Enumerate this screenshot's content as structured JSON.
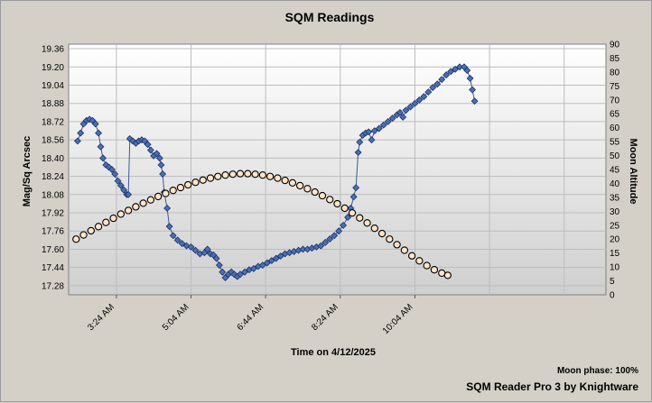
{
  "chart_data": {
    "type": "line",
    "title": "SQM Readings",
    "xlabel": "Time on 4/12/2025",
    "ylabel": "Mag/Sq Arcsec",
    "y2label": "Moon Altitude",
    "x_ticks": [
      "3:24 AM",
      "5:04 AM",
      "6:44 AM",
      "8:24 AM",
      "10:04 AM"
    ],
    "xlim_minutes": [
      140,
      860
    ],
    "ylim": [
      17.2,
      19.4
    ],
    "y_ticks": [
      17.28,
      17.44,
      17.6,
      17.76,
      17.92,
      18.08,
      18.24,
      18.4,
      18.56,
      18.72,
      18.88,
      19.04,
      19.2,
      19.36
    ],
    "y2lim": [
      0,
      90
    ],
    "y2_ticks": [
      0,
      5,
      10,
      15,
      20,
      25,
      30,
      35,
      40,
      45,
      50,
      55,
      60,
      65,
      70,
      75,
      80,
      85,
      90
    ],
    "grid": true,
    "series": [
      {
        "axis": "left",
        "color": "#4a6fb5",
        "marker": "diamond",
        "points": [
          [
            152,
            18.55
          ],
          [
            156,
            18.62
          ],
          [
            160,
            18.7
          ],
          [
            164,
            18.73
          ],
          [
            168,
            18.74
          ],
          [
            172,
            18.73
          ],
          [
            176,
            18.7
          ],
          [
            180,
            18.62
          ],
          [
            183,
            18.5
          ],
          [
            186,
            18.4
          ],
          [
            190,
            18.34
          ],
          [
            194,
            18.32
          ],
          [
            198,
            18.3
          ],
          [
            202,
            18.26
          ],
          [
            206,
            18.2
          ],
          [
            210,
            18.16
          ],
          [
            214,
            18.12
          ],
          [
            218,
            18.08
          ],
          [
            220,
            18.08
          ],
          [
            222,
            18.57
          ],
          [
            226,
            18.55
          ],
          [
            230,
            18.53
          ],
          [
            234,
            18.55
          ],
          [
            238,
            18.56
          ],
          [
            242,
            18.55
          ],
          [
            246,
            18.52
          ],
          [
            250,
            18.47
          ],
          [
            254,
            18.42
          ],
          [
            258,
            18.44
          ],
          [
            262,
            18.4
          ],
          [
            264,
            18.34
          ],
          [
            266,
            18.26
          ],
          [
            268,
            18.1
          ],
          [
            272,
            17.96
          ],
          [
            275,
            17.8
          ],
          [
            280,
            17.72
          ],
          [
            286,
            17.68
          ],
          [
            292,
            17.65
          ],
          [
            298,
            17.63
          ],
          [
            304,
            17.62
          ],
          [
            310,
            17.59
          ],
          [
            316,
            17.56
          ],
          [
            322,
            17.57
          ],
          [
            326,
            17.6
          ],
          [
            330,
            17.56
          ],
          [
            334,
            17.55
          ],
          [
            338,
            17.52
          ],
          [
            342,
            17.46
          ],
          [
            346,
            17.4
          ],
          [
            350,
            17.35
          ],
          [
            354,
            17.38
          ],
          [
            358,
            17.4
          ],
          [
            362,
            17.38
          ],
          [
            366,
            17.36
          ],
          [
            370,
            17.38
          ],
          [
            376,
            17.4
          ],
          [
            382,
            17.42
          ],
          [
            388,
            17.43
          ],
          [
            394,
            17.45
          ],
          [
            400,
            17.46
          ],
          [
            406,
            17.48
          ],
          [
            412,
            17.5
          ],
          [
            418,
            17.52
          ],
          [
            424,
            17.54
          ],
          [
            430,
            17.56
          ],
          [
            436,
            17.57
          ],
          [
            442,
            17.58
          ],
          [
            448,
            17.59
          ],
          [
            454,
            17.6
          ],
          [
            460,
            17.6
          ],
          [
            466,
            17.61
          ],
          [
            472,
            17.62
          ],
          [
            478,
            17.63
          ],
          [
            484,
            17.66
          ],
          [
            490,
            17.69
          ],
          [
            496,
            17.72
          ],
          [
            502,
            17.76
          ],
          [
            508,
            17.81
          ],
          [
            514,
            17.88
          ],
          [
            518,
            17.96
          ],
          [
            522,
            18.06
          ],
          [
            525,
            18.14
          ],
          [
            528,
            18.45
          ],
          [
            530,
            18.54
          ],
          [
            534,
            18.6
          ],
          [
            538,
            18.62
          ],
          [
            542,
            18.63
          ],
          [
            546,
            18.56
          ],
          [
            550,
            18.64
          ],
          [
            556,
            18.66
          ],
          [
            562,
            18.69
          ],
          [
            568,
            18.72
          ],
          [
            574,
            18.75
          ],
          [
            580,
            18.78
          ],
          [
            584,
            18.8
          ],
          [
            588,
            18.76
          ],
          [
            592,
            18.82
          ],
          [
            598,
            18.85
          ],
          [
            604,
            18.88
          ],
          [
            610,
            18.91
          ],
          [
            616,
            18.94
          ],
          [
            622,
            18.98
          ],
          [
            628,
            19.02
          ],
          [
            634,
            19.05
          ],
          [
            640,
            19.09
          ],
          [
            646,
            19.13
          ],
          [
            652,
            19.16
          ],
          [
            658,
            19.18
          ],
          [
            664,
            19.2
          ],
          [
            670,
            19.2
          ],
          [
            674,
            19.17
          ],
          [
            678,
            19.1
          ],
          [
            681,
            19.0
          ],
          [
            684,
            18.9
          ]
        ]
      },
      {
        "axis": "right",
        "color": "#ffe4c8",
        "marker": "circle",
        "points": [
          [
            150,
            20
          ],
          [
            160,
            21.5
          ],
          [
            170,
            23
          ],
          [
            180,
            24.5
          ],
          [
            190,
            26
          ],
          [
            200,
            27.5
          ],
          [
            210,
            29
          ],
          [
            220,
            30.3
          ],
          [
            230,
            31.6
          ],
          [
            240,
            32.9
          ],
          [
            250,
            34.1
          ],
          [
            260,
            35.3
          ],
          [
            270,
            36.4
          ],
          [
            280,
            37.5
          ],
          [
            290,
            38.5
          ],
          [
            300,
            39.5
          ],
          [
            310,
            40.4
          ],
          [
            320,
            41.2
          ],
          [
            330,
            41.9
          ],
          [
            340,
            42.5
          ],
          [
            350,
            43.0
          ],
          [
            360,
            43.3
          ],
          [
            370,
            43.5
          ],
          [
            380,
            43.5
          ],
          [
            390,
            43.3
          ],
          [
            400,
            43.0
          ],
          [
            410,
            42.5
          ],
          [
            420,
            41.9
          ],
          [
            430,
            41.1
          ],
          [
            440,
            40.2
          ],
          [
            450,
            39.2
          ],
          [
            460,
            38.1
          ],
          [
            470,
            36.9
          ],
          [
            480,
            35.6
          ],
          [
            490,
            34.2
          ],
          [
            500,
            32.7
          ],
          [
            510,
            31.1
          ],
          [
            520,
            29.4
          ],
          [
            530,
            27.6
          ],
          [
            540,
            25.8
          ],
          [
            550,
            23.9
          ],
          [
            560,
            22.0
          ],
          [
            570,
            20.0
          ],
          [
            580,
            18.0
          ],
          [
            590,
            16.0
          ],
          [
            600,
            14.0
          ],
          [
            610,
            12.2
          ],
          [
            620,
            10.5
          ],
          [
            630,
            9.0
          ],
          [
            640,
            7.8
          ],
          [
            648,
            7.0
          ]
        ]
      }
    ]
  },
  "footer": {
    "moon_phase": "Moon phase: 100%",
    "app_name": "SQM Reader Pro 3 by Knightware"
  }
}
